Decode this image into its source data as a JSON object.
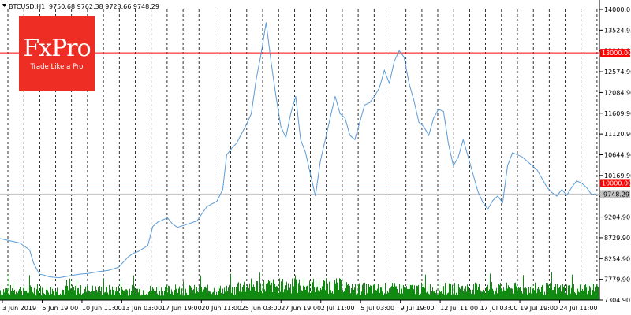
{
  "header": {
    "symbol": "BTCUSD,H1",
    "ohlc": "9750.68 9762.38 9723.66 9748.29"
  },
  "logo": {
    "name": "FxPro",
    "tagline": "Trade Like a Pro",
    "bg": "#ee2d24"
  },
  "colors": {
    "price": "#5b9bd5",
    "volume": "#118a11",
    "level": "#ff0000",
    "grid": "#000000"
  },
  "chart_data": {
    "type": "line",
    "y_ticks": [
      "14000.0",
      "13524.95",
      "13049.95",
      "12574.90",
      "12084.90",
      "11609.90",
      "11120.90",
      "10644.90",
      "10169.90",
      "9679.90",
      "9204.90",
      "8729.90",
      "8254.90",
      "7779.90",
      "7304.90"
    ],
    "x_ticks": [
      "3 Jun 2019",
      "5 Jun 19:00",
      "10 Jun 11:00",
      "13 Jun 03:00",
      "17 Jun 19:00",
      "20 Jun 11:00",
      "25 Jun 03:00",
      "27 Jun 19:00",
      "2 Jul 11:00",
      "5 Jul 03:00",
      "9 Jul 19:00",
      "12 Jul 11:00",
      "17 Jul 03:00",
      "19 Jul 19:00",
      "24 Jul 11:00"
    ],
    "ylim": [
      7304.9,
      14000.0
    ],
    "levels": [
      {
        "label": "13000.00",
        "value": 13000
      },
      {
        "label": "10000.00",
        "value": 10000
      }
    ],
    "last_price": {
      "label": "9748.29",
      "value": 9748.29
    },
    "price": [
      [
        0,
        8720
      ],
      [
        2,
        8620
      ],
      [
        3,
        8460
      ],
      [
        3.4,
        8160
      ],
      [
        4,
        7900
      ],
      [
        4.5,
        7880
      ],
      [
        5,
        7840
      ],
      [
        6,
        7820
      ],
      [
        7,
        7860
      ],
      [
        8,
        7900
      ],
      [
        9,
        7920
      ],
      [
        10,
        7960
      ],
      [
        11,
        7990
      ],
      [
        12,
        8060
      ],
      [
        12.6,
        8200
      ],
      [
        13,
        8300
      ],
      [
        13.5,
        8380
      ],
      [
        14,
        8420
      ],
      [
        15,
        8560
      ],
      [
        15.5,
        9000
      ],
      [
        16,
        9100
      ],
      [
        17,
        9200
      ],
      [
        17.5,
        9060
      ],
      [
        18,
        8980
      ],
      [
        19,
        9050
      ],
      [
        20,
        9130
      ],
      [
        20.5,
        9300
      ],
      [
        21,
        9460
      ],
      [
        22,
        9580
      ],
      [
        22.6,
        9850
      ],
      [
        23,
        10650
      ],
      [
        23.5,
        10800
      ],
      [
        24,
        10920
      ],
      [
        25,
        11350
      ],
      [
        25.5,
        11600
      ],
      [
        26,
        12400
      ],
      [
        26.5,
        12980
      ],
      [
        27,
        13700
      ],
      [
        27.5,
        12800
      ],
      [
        28,
        12000
      ],
      [
        28.5,
        11300
      ],
      [
        29,
        11050
      ],
      [
        29.5,
        11600
      ],
      [
        30,
        12000
      ],
      [
        30.5,
        11000
      ],
      [
        31,
        10700
      ],
      [
        31.5,
        10200
      ],
      [
        32,
        9700
      ],
      [
        32.5,
        10500
      ],
      [
        33,
        11000
      ],
      [
        33.5,
        11500
      ],
      [
        34,
        12000
      ],
      [
        34.5,
        11600
      ],
      [
        35,
        11500
      ],
      [
        35.5,
        11100
      ],
      [
        36,
        11000
      ],
      [
        36.5,
        11400
      ],
      [
        37,
        11800
      ],
      [
        37.5,
        11850
      ],
      [
        38,
        12000
      ],
      [
        38.5,
        12200
      ],
      [
        39,
        12600
      ],
      [
        39.5,
        12300
      ],
      [
        40,
        12800
      ],
      [
        40.5,
        13050
      ],
      [
        41,
        12900
      ],
      [
        41.5,
        12300
      ],
      [
        42,
        11900
      ],
      [
        42.5,
        11400
      ],
      [
        43,
        11300
      ],
      [
        43.5,
        11100
      ],
      [
        44,
        11500
      ],
      [
        44.5,
        11700
      ],
      [
        45,
        11650
      ],
      [
        45.5,
        10900
      ],
      [
        46,
        10400
      ],
      [
        46.5,
        10600
      ],
      [
        47,
        11000
      ],
      [
        47.5,
        10600
      ],
      [
        48,
        10200
      ],
      [
        48.5,
        9800
      ],
      [
        49,
        9550
      ],
      [
        49.5,
        9400
      ],
      [
        50,
        9600
      ],
      [
        50.5,
        9700
      ],
      [
        51,
        9550
      ],
      [
        51.5,
        10400
      ],
      [
        52,
        10700
      ],
      [
        52.5,
        10650
      ],
      [
        53,
        10600
      ],
      [
        53.5,
        10500
      ],
      [
        54,
        10400
      ],
      [
        54.5,
        10300
      ],
      [
        55,
        10100
      ],
      [
        55.5,
        9900
      ],
      [
        56,
        9780
      ],
      [
        56.5,
        9700
      ],
      [
        57,
        9850
      ],
      [
        57.5,
        9720
      ],
      [
        58,
        9900
      ],
      [
        58.5,
        10050
      ],
      [
        59,
        10000
      ],
      [
        59.5,
        9900
      ],
      [
        60,
        9740
      ],
      [
        60.5,
        9748.29
      ]
    ],
    "volume_seed": 7
  }
}
